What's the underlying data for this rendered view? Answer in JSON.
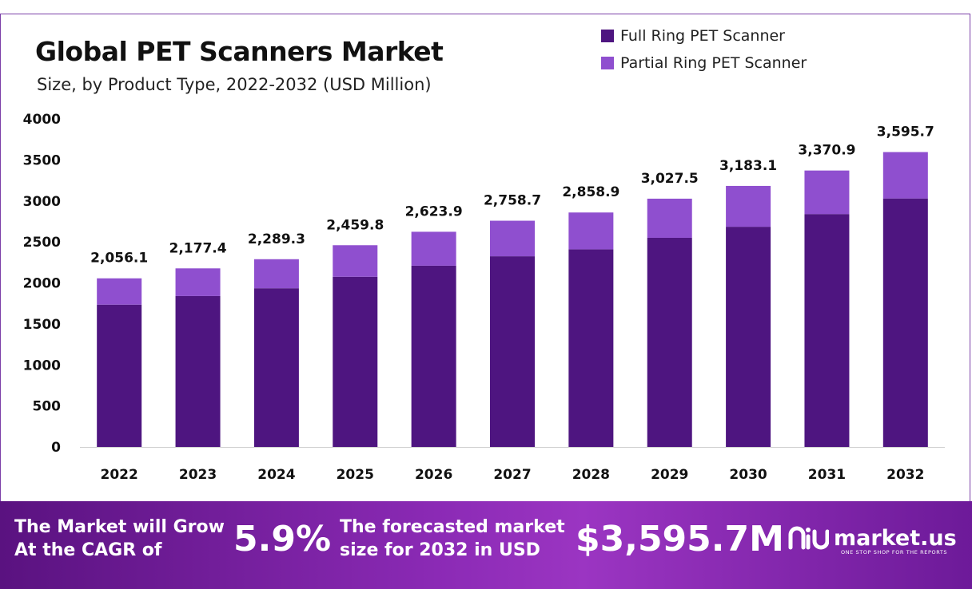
{
  "chart_data": {
    "type": "bar",
    "stacked": true,
    "title": "Global PET Scanners Market",
    "subtitle": "Size, by Product Type, 2022-2032 (USD Million)",
    "categories": [
      "2022",
      "2023",
      "2024",
      "2025",
      "2026",
      "2027",
      "2028",
      "2029",
      "2030",
      "2031",
      "2032"
    ],
    "series": [
      {
        "name": "Full Ring PET Scanner",
        "color": "#4e1580",
        "values": [
          1735,
          1840,
          1935,
          2075,
          2210,
          2325,
          2410,
          2550,
          2685,
          2840,
          3030
        ]
      },
      {
        "name": "Partial Ring PET Scanner",
        "color": "#8f4fcf",
        "values": [
          321.1,
          337.4,
          354.3,
          384.8,
          413.9,
          433.7,
          448.9,
          477.5,
          498.1,
          530.9,
          565.7
        ]
      }
    ],
    "totals": [
      2056.1,
      2177.4,
      2289.3,
      2459.8,
      2623.9,
      2758.7,
      2858.9,
      3027.5,
      3183.1,
      3370.9,
      3595.7
    ],
    "total_labels": [
      "2,056.1",
      "2,177.4",
      "2,289.3",
      "2,459.8",
      "2,623.9",
      "2,758.7",
      "2,858.9",
      "3,027.5",
      "3,183.1",
      "3,370.9",
      "3,595.7"
    ],
    "yticks": [
      "0",
      "500",
      "1000",
      "1500",
      "2000",
      "2500",
      "3000",
      "3500",
      "4000"
    ],
    "ylim": [
      0,
      4000
    ],
    "xlabel": "",
    "ylabel": "",
    "legend_position": "top-right"
  },
  "banner": {
    "cagr_text_line1": "The Market will Grow",
    "cagr_text_line2": "At the CAGR of",
    "cagr_value": "5.9%",
    "forecast_text_line1": "The forecasted market",
    "forecast_text_line2": "size for 2032 in USD",
    "forecast_value": "$3,595.7M",
    "brand_name": "market.us",
    "brand_tagline": "ONE STOP SHOP FOR THE REPORTS"
  }
}
